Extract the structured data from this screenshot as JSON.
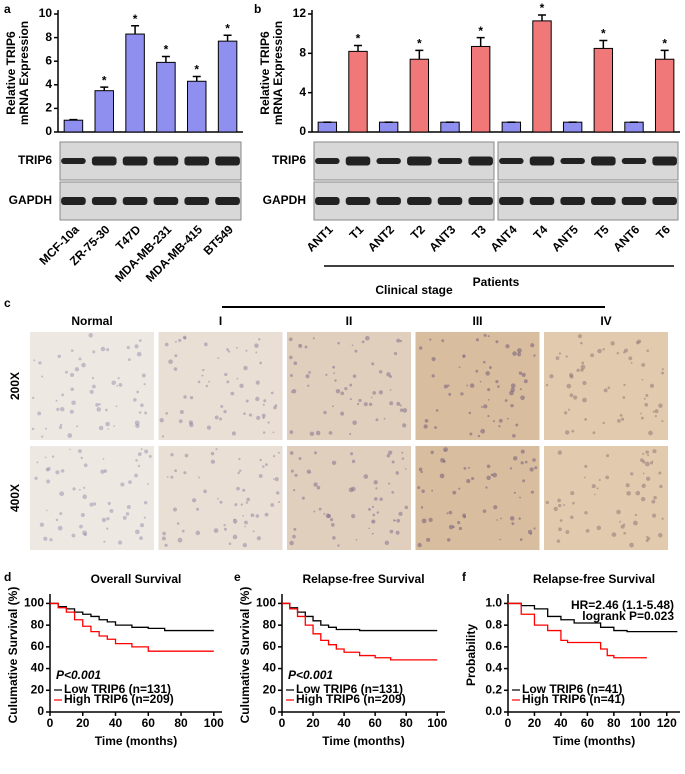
{
  "chart_data": [
    {
      "panel": "a",
      "type": "bar",
      "ylabel": [
        "Relative TRIP6",
        "mRNA Expression"
      ],
      "categories": [
        "MCF-10a",
        "ZR-75-30",
        "T47D",
        "MDA-MB-231",
        "MDA-MB-415",
        "BT549"
      ],
      "values": [
        1,
        3.5,
        8.3,
        5.9,
        4.3,
        7.7
      ],
      "errors": [
        0.05,
        0.3,
        0.7,
        0.5,
        0.4,
        0.5
      ],
      "significance": [
        null,
        "*",
        "*",
        "*",
        "*",
        "*"
      ],
      "color": "#8f8ff0",
      "ylim": [
        0,
        10
      ],
      "yticks": [
        0,
        2,
        4,
        6,
        8,
        10
      ],
      "blot_labels": [
        "TRIP6",
        "GAPDH"
      ]
    },
    {
      "panel": "b",
      "type": "bar",
      "ylabel": [
        "Relative TRIP6",
        "mRNA Expression"
      ],
      "categories": [
        "ANT1",
        "T1",
        "ANT2",
        "T2",
        "ANT3",
        "T3",
        "ANT4",
        "T4",
        "ANT5",
        "T5",
        "ANT6",
        "T6"
      ],
      "values": [
        1,
        8.2,
        1,
        7.4,
        1,
        8.7,
        1,
        11.3,
        1,
        8.5,
        1,
        7.4
      ],
      "errors": [
        0,
        0.6,
        0,
        0.9,
        0,
        0.9,
        0,
        0.6,
        0,
        0.8,
        0,
        0.9
      ],
      "significance": [
        null,
        "*",
        null,
        "*",
        null,
        "*",
        null,
        "*",
        null,
        "*",
        null,
        "*"
      ],
      "colors": [
        "#8f8ff0",
        "#f07878",
        "#8f8ff0",
        "#f07878",
        "#8f8ff0",
        "#f07878",
        "#8f8ff0",
        "#f07878",
        "#8f8ff0",
        "#f07878",
        "#8f8ff0",
        "#f07878"
      ],
      "ylim": [
        0,
        12
      ],
      "yticks": [
        0,
        4,
        8,
        12
      ],
      "xlabel": "Patients",
      "blot_labels": [
        "TRIP6",
        "GAPDH"
      ]
    },
    {
      "panel": "d",
      "type": "step",
      "title": "Overall Survival",
      "ylabel": "Culumative Survival (%)",
      "xlabel": "Time (months)",
      "annotation": "P<0.001",
      "xlim": [
        0,
        105
      ],
      "xticks": [
        0,
        20,
        40,
        60,
        80,
        100
      ],
      "ylim": [
        0,
        105
      ],
      "yticks": [
        0,
        20,
        40,
        60,
        80,
        100
      ],
      "series": [
        {
          "name": "Low TRIP6 (n=131)",
          "color": "#000000",
          "x": [
            0,
            5,
            10,
            15,
            20,
            25,
            30,
            35,
            40,
            50,
            60,
            70,
            80,
            100
          ],
          "values": [
            100,
            97,
            95,
            92,
            90,
            88,
            85,
            83,
            80,
            78,
            77,
            75,
            75,
            75
          ]
        },
        {
          "name": "High TRIP6 (n=209)",
          "color": "#ff0000",
          "x": [
            0,
            5,
            10,
            15,
            20,
            25,
            30,
            35,
            40,
            50,
            60,
            70,
            80,
            100
          ],
          "values": [
            100,
            96,
            92,
            85,
            79,
            74,
            70,
            67,
            63,
            60,
            56,
            56,
            56,
            56
          ]
        }
      ]
    },
    {
      "panel": "e",
      "type": "step",
      "title": "Relapse-free Survival",
      "ylabel": "Culumative Survival (%)",
      "xlabel": "Time (months)",
      "annotation": "P<0.001",
      "xlim": [
        0,
        105
      ],
      "xticks": [
        0,
        20,
        40,
        60,
        80,
        100
      ],
      "ylim": [
        0,
        105
      ],
      "yticks": [
        0,
        20,
        40,
        60,
        80,
        100
      ],
      "series": [
        {
          "name": "Low TRIP6 (n=131)",
          "color": "#000000",
          "x": [
            0,
            5,
            10,
            15,
            20,
            25,
            30,
            35,
            40,
            50,
            60,
            70,
            80,
            100
          ],
          "values": [
            100,
            96,
            92,
            88,
            84,
            80,
            78,
            76,
            76,
            75,
            75,
            75,
            75,
            75
          ]
        },
        {
          "name": "High TRIP6 (n=209)",
          "color": "#ff0000",
          "x": [
            0,
            5,
            10,
            15,
            20,
            25,
            30,
            35,
            40,
            50,
            60,
            70,
            80,
            100
          ],
          "values": [
            100,
            95,
            88,
            80,
            72,
            66,
            62,
            58,
            55,
            52,
            50,
            48,
            48,
            48
          ]
        }
      ]
    },
    {
      "panel": "f",
      "type": "step",
      "title": "Relapse-free Survival",
      "ylabel": "Probability",
      "xlabel": "Time (months)",
      "annotation": [
        "HR=2.46 (1.1-5.48)",
        "logrank P=0.023"
      ],
      "xlim": [
        0,
        130
      ],
      "xticks": [
        0,
        20,
        40,
        60,
        80,
        100,
        120
      ],
      "ylim": [
        0,
        1.05
      ],
      "yticks": [
        {
          "value": 0,
          "label": "0.0"
        },
        0.2,
        0.4,
        0.6,
        0.8,
        {
          "value": 1,
          "label": "1.0"
        }
      ],
      "series": [
        {
          "name": "Low TRIP6 (n=41)",
          "color": "#000000",
          "x": [
            0,
            10,
            20,
            30,
            40,
            50,
            60,
            70,
            80,
            90,
            100,
            110,
            128
          ],
          "values": [
            1,
            0.98,
            0.95,
            0.88,
            0.85,
            0.82,
            0.82,
            0.78,
            0.75,
            0.74,
            0.74,
            0.74,
            0.74
          ]
        },
        {
          "name": "High TRIP6 (n=41)",
          "color": "#ff0000",
          "x": [
            0,
            10,
            20,
            30,
            40,
            45,
            60,
            70,
            75,
            80,
            90,
            105
          ],
          "values": [
            1,
            0.9,
            0.8,
            0.75,
            0.66,
            0.64,
            0.64,
            0.58,
            0.52,
            0.5,
            0.5,
            0.5
          ]
        }
      ]
    }
  ],
  "ihc": {
    "panel": "c",
    "title": "Clinical stage",
    "columns": [
      "Normal",
      "I",
      "II",
      "III",
      "IV"
    ],
    "rows": [
      "200X",
      "400X"
    ]
  }
}
